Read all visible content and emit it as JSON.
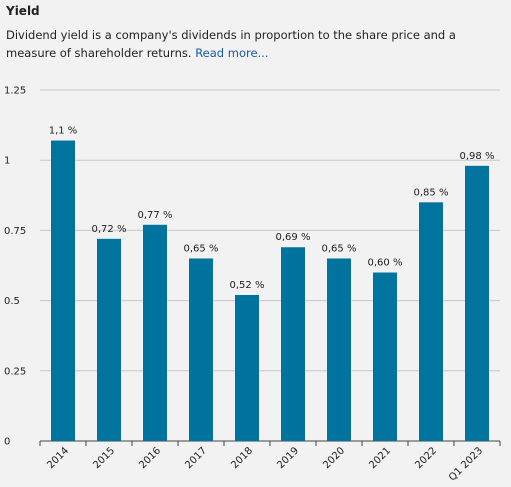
{
  "header": {
    "title": "Yield",
    "description": "Dividend yield is a company's dividends in proportion to the share price and a measure of shareholder returns.",
    "read_more": "Read more..."
  },
  "colors": {
    "bar": "#00749e",
    "grid": "#c8c8c8",
    "axis": "#444444"
  },
  "chart_data": {
    "type": "bar",
    "title": "",
    "xlabel": "",
    "ylabel": "",
    "ylim": [
      0,
      1.25
    ],
    "yticks": [
      0,
      0.25,
      0.5,
      0.75,
      1,
      1.25
    ],
    "ytick_labels": [
      "0",
      "0.25",
      "0.5",
      "0.75",
      "1",
      "1.25"
    ],
    "grid": true,
    "categories": [
      "2014",
      "2015",
      "2016",
      "2017",
      "2018",
      "2019",
      "2020",
      "2021",
      "2022",
      "Q1 2023"
    ],
    "values": [
      1.07,
      0.72,
      0.77,
      0.65,
      0.52,
      0.69,
      0.65,
      0.6,
      0.85,
      0.98
    ],
    "value_labels": [
      "1,1 %",
      "0,72 %",
      "0,77 %",
      "0,65 %",
      "0,52 %",
      "0,69 %",
      "0,65 %",
      "0,60 %",
      "0,85 %",
      "0,98 %"
    ]
  }
}
